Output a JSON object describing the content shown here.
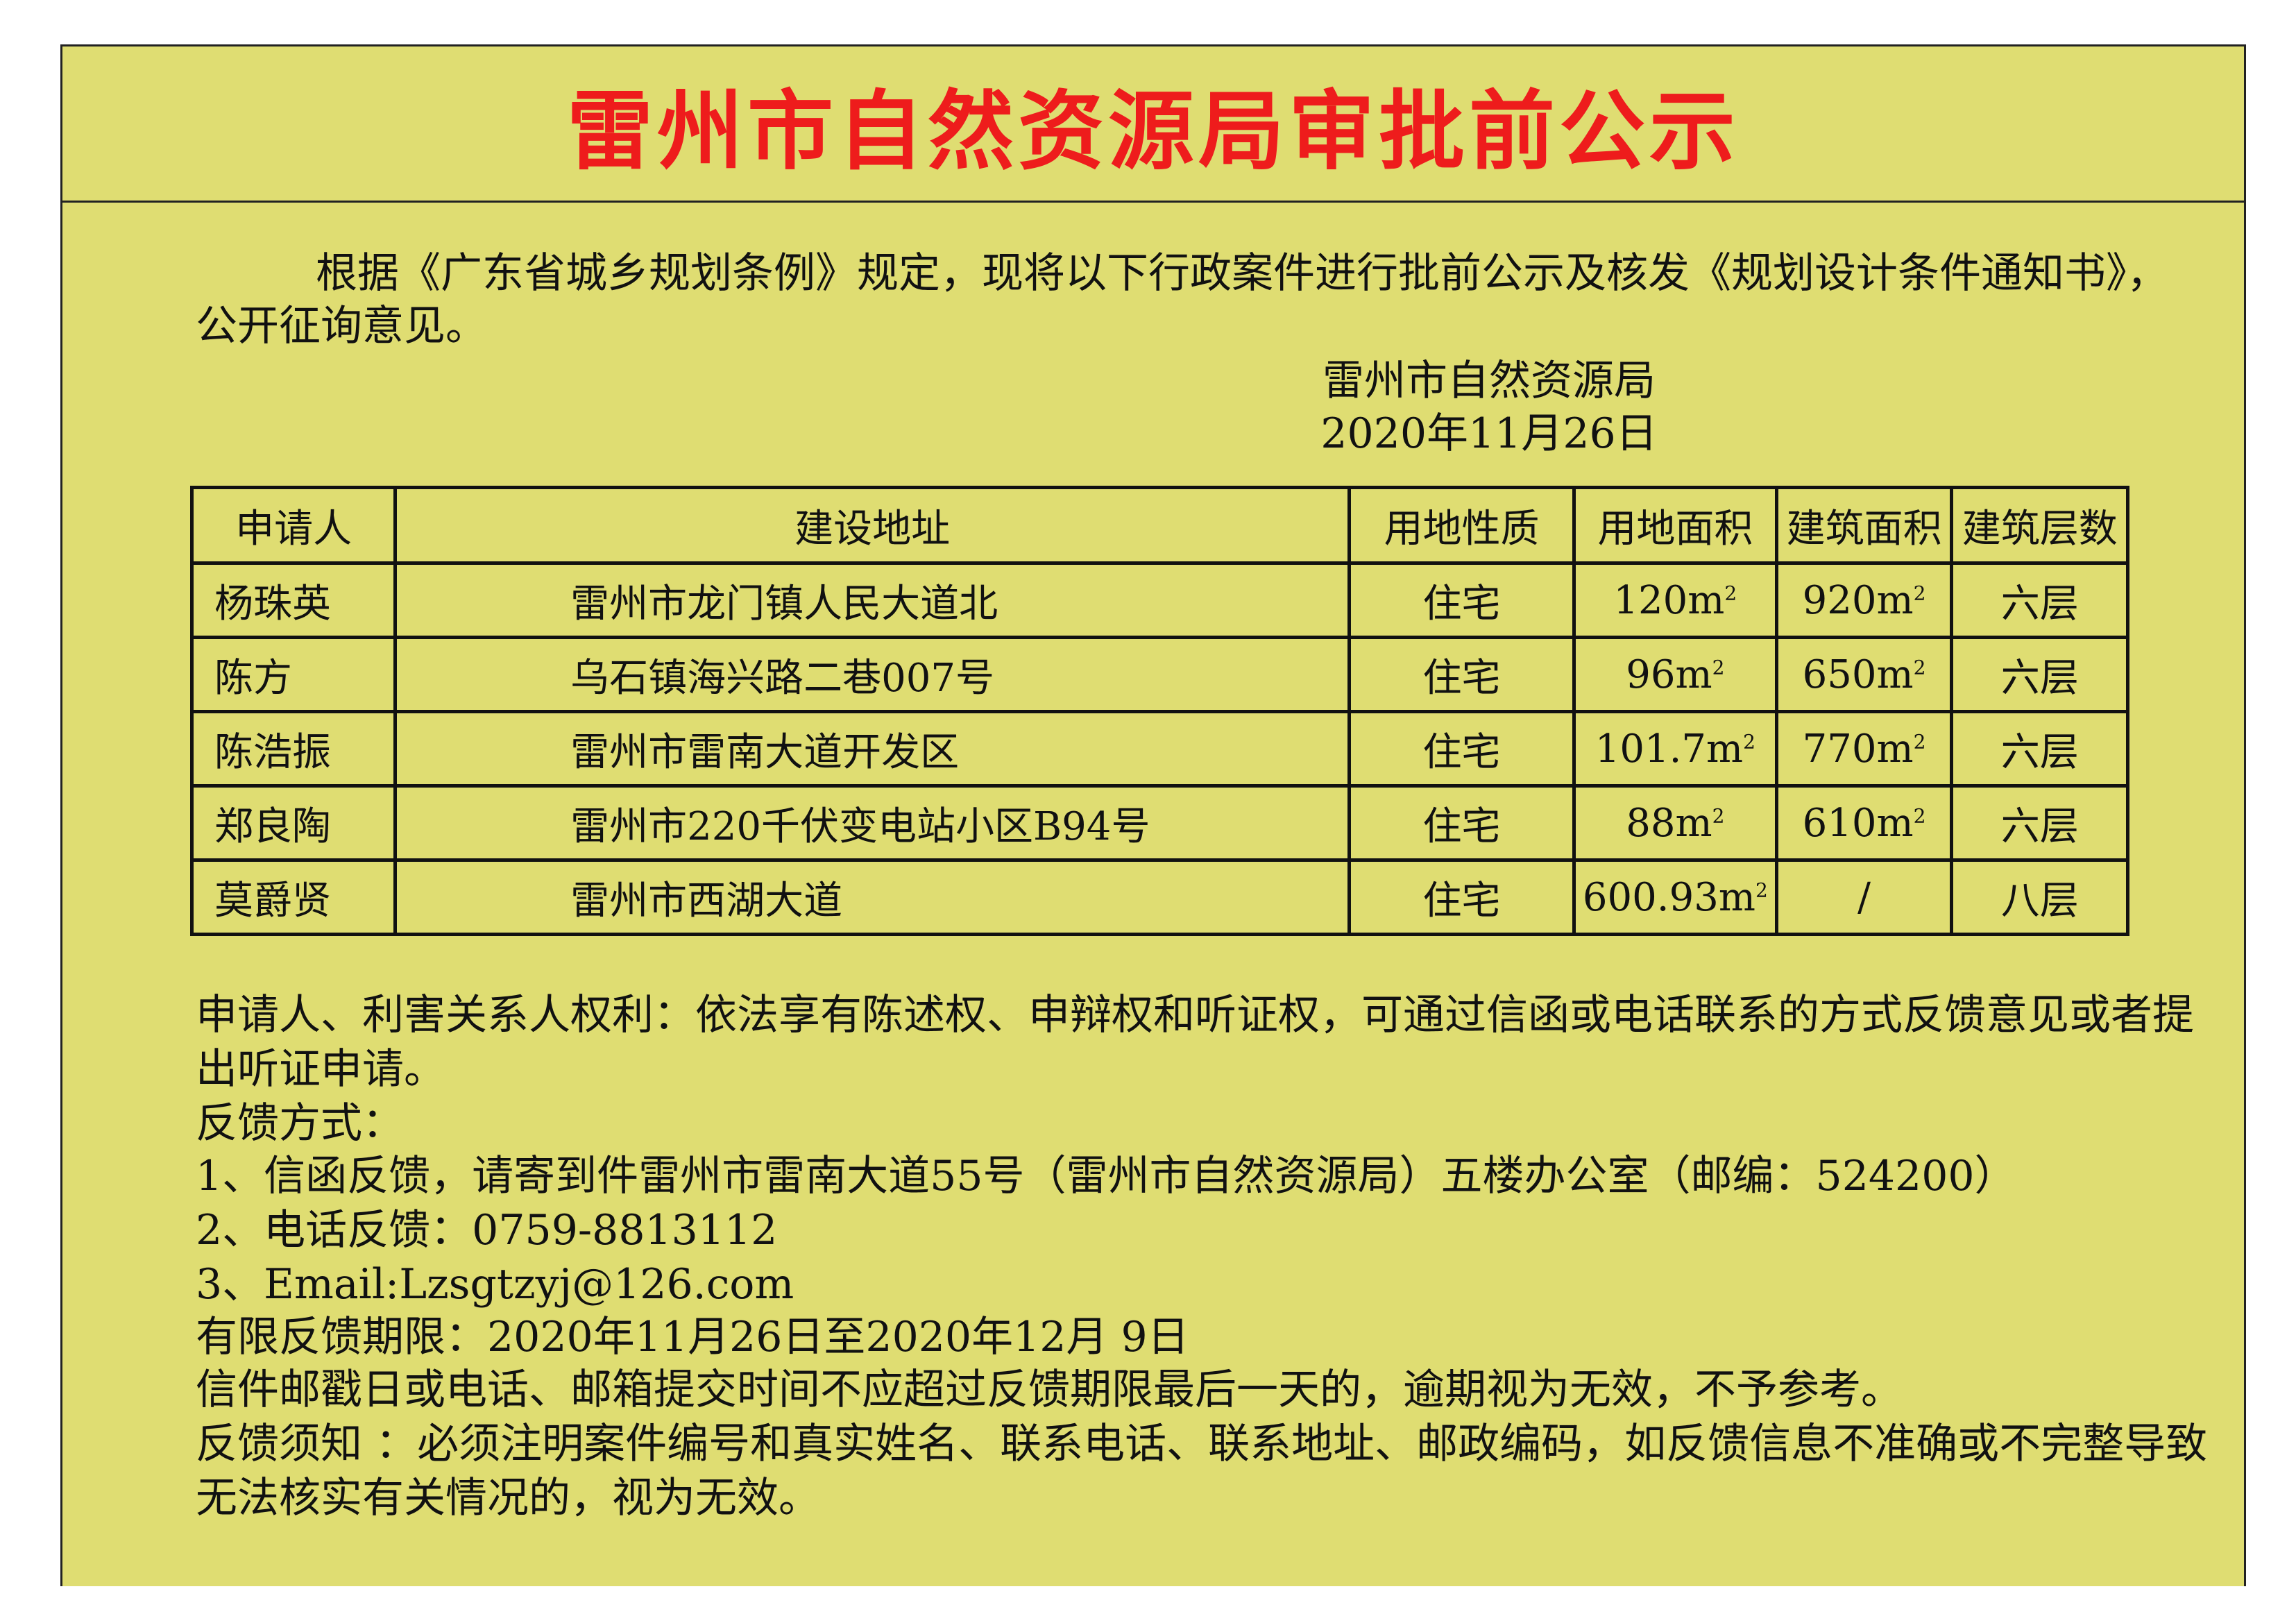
{
  "title": "雷州市自然资源局审批前公示",
  "intro": {
    "line1": "根据《广东省城乡规划条例》规定，现将以下行政案件进行批前公示及核发《规划设计条件通知书》，",
    "line2": "公开征询意见。",
    "issuer": "雷州市自然资源局",
    "date": "2020年11月26日"
  },
  "table": {
    "headers": [
      "申请人",
      "建设地址",
      "用地性质",
      "用地面积",
      "建筑面积",
      "建筑层数"
    ],
    "rows": [
      {
        "applicant": "杨珠英",
        "address": "雷州市龙门镇人民大道北",
        "use": "住宅",
        "land_area": "120m",
        "building_area": "920m",
        "floors": "六层"
      },
      {
        "applicant": "陈方",
        "address": "乌石镇海兴路二巷007号",
        "use": "住宅",
        "land_area": "96m",
        "building_area": "650m",
        "floors": "六层"
      },
      {
        "applicant": "陈浩振",
        "address": "雷州市雷南大道开发区",
        "use": "住宅",
        "land_area": "101.7m",
        "building_area": "770m",
        "floors": "六层"
      },
      {
        "applicant": "郑良陶",
        "address": "雷州市220千伏变电站小区B94号",
        "use": "住宅",
        "land_area": "88m",
        "building_area": "610m",
        "floors": "六层"
      },
      {
        "applicant": "莫爵贤",
        "address": "雷州市西湖大道",
        "use": "住宅",
        "land_area": "600.93m",
        "building_area": "/",
        "floors": "八层"
      }
    ],
    "superscript": "2"
  },
  "notes": [
    "申请人、利害关系人权利：依法享有陈述权、申辩权和听证权，可通过信函或电话联系的方式反馈意见或者提",
    "出听证申请。",
    "反馈方式：",
    "1、信函反馈，请寄到件雷州市雷南大道55号（雷州市自然资源局）五楼办公室（邮编：524200）",
    "2、电话反馈：0759-8813112",
    "3、Email:Lzsgtzyj@126.com",
    "有限反馈期限：2020年11月26日至2020年12月 9日",
    "信件邮戳日或电话、邮箱提交时间不应超过反馈期限最后一天的，逾期视为无效，不予参考。",
    "反馈须知 ：必须注明案件编号和真实姓名、联系电话、联系地址、邮政编码，如反馈信息不准确或不完整导致",
    "无法核实有关情况的，视为无效。"
  ],
  "colors": {
    "background": "#dfdd72",
    "title": "#ee1c1c"
  }
}
